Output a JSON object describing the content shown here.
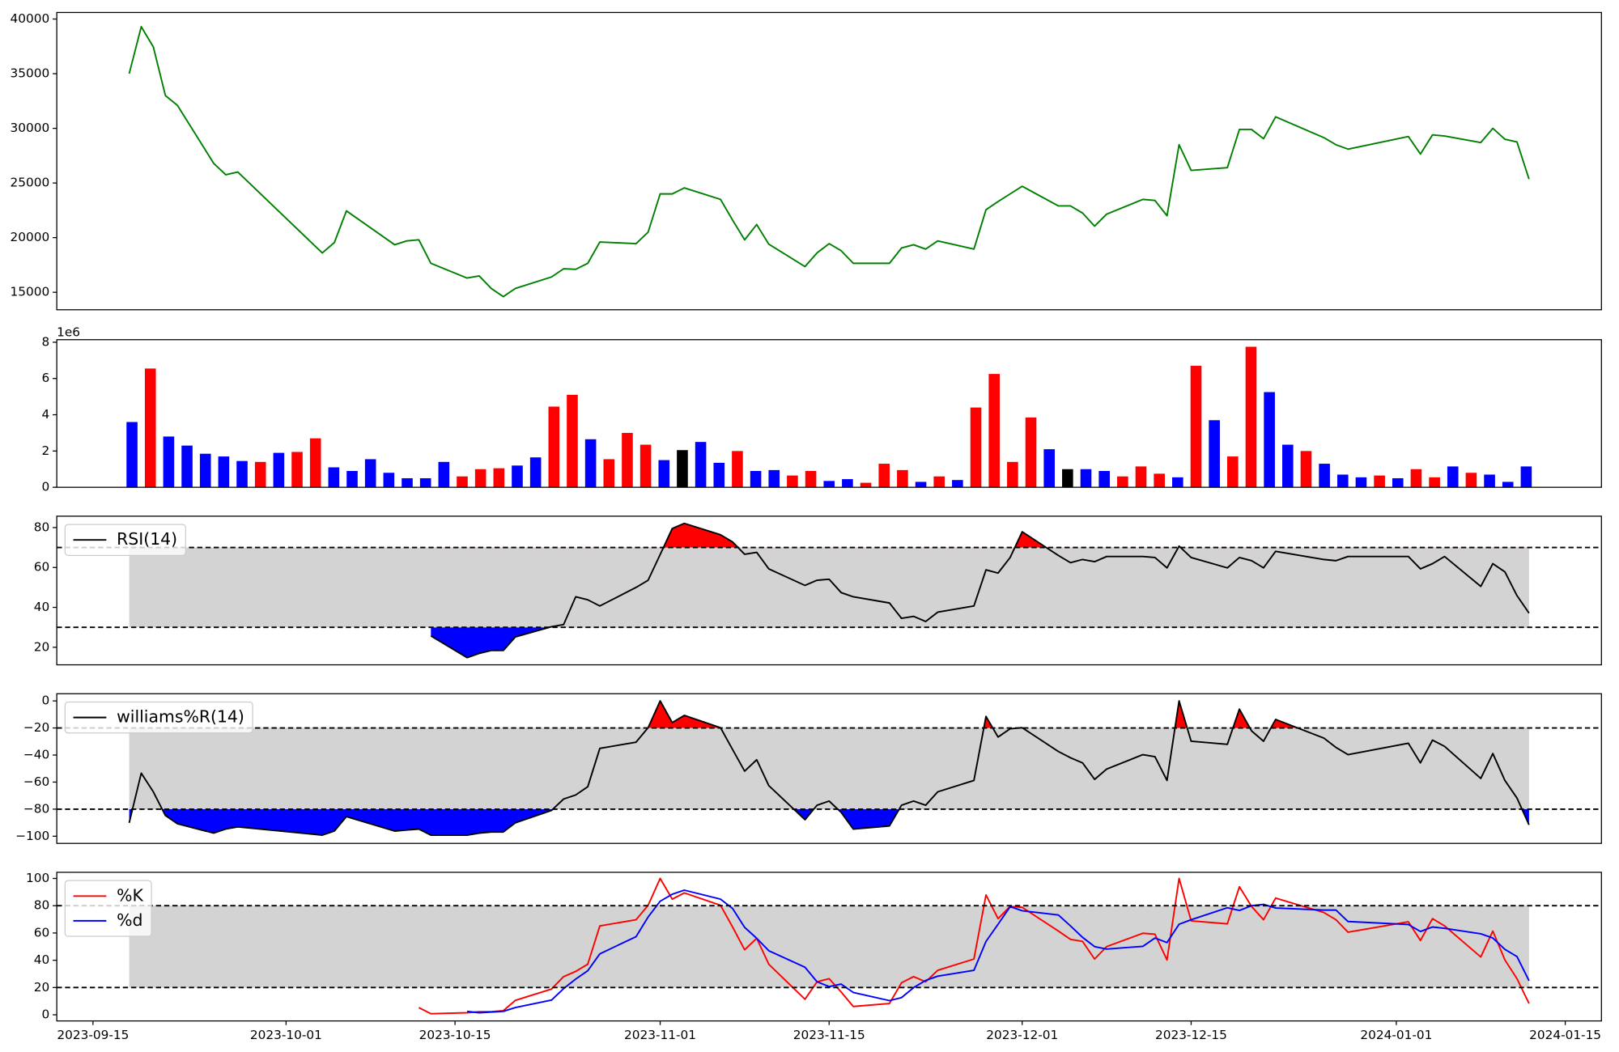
{
  "chart_data": [
    {
      "type": "line",
      "x": [
        "2023-09-18",
        "2023-09-19",
        "2023-09-20",
        "2023-09-21",
        "2023-09-22",
        "2023-09-25",
        "2023-09-26",
        "2023-09-27",
        "2023-10-04",
        "2023-10-05",
        "2023-10-06",
        "2023-10-10",
        "2023-10-11",
        "2023-10-12",
        "2023-10-13",
        "2023-10-16",
        "2023-10-17",
        "2023-10-18",
        "2023-10-19",
        "2023-10-20",
        "2023-10-23",
        "2023-10-24",
        "2023-10-25",
        "2023-10-26",
        "2023-10-27",
        "2023-10-30",
        "2023-10-31",
        "2023-11-01",
        "2023-11-02",
        "2023-11-03",
        "2023-11-06",
        "2023-11-07",
        "2023-11-08",
        "2023-11-09",
        "2023-11-10",
        "2023-11-13",
        "2023-11-14",
        "2023-11-15",
        "2023-11-16",
        "2023-11-17",
        "2023-11-20",
        "2023-11-21",
        "2023-11-22",
        "2023-11-23",
        "2023-11-24",
        "2023-11-27",
        "2023-11-28",
        "2023-11-29",
        "2023-11-30",
        "2023-12-01",
        "2023-12-04",
        "2023-12-05",
        "2023-12-06",
        "2023-12-07",
        "2023-12-08",
        "2023-12-11",
        "2023-12-12",
        "2023-12-13",
        "2023-12-14",
        "2023-12-15",
        "2023-12-18",
        "2023-12-19",
        "2023-12-20",
        "2023-12-21",
        "2023-12-22",
        "2023-12-26",
        "2023-12-27",
        "2023-12-28",
        "2024-01-02",
        "2024-01-03",
        "2024-01-04",
        "2024-01-05",
        "2024-01-08",
        "2024-01-09",
        "2024-01-10",
        "2024-01-11",
        "2024-01-12"
      ],
      "series": [
        {
          "color": "green",
          "values": [
            35000,
            39300,
            37450,
            33000,
            32100,
            26800,
            25750,
            26000,
            18600,
            19550,
            22450,
            19350,
            19700,
            19800,
            17650,
            16300,
            16500,
            15350,
            14600,
            15350,
            16400,
            17150,
            17100,
            17650,
            19600,
            19450,
            20500,
            24000,
            24000,
            24550,
            23500,
            21600,
            19800,
            21200,
            19400,
            17350,
            18600,
            19450,
            18800,
            17650,
            17650,
            19050,
            19350,
            18950,
            19700,
            18950,
            22550,
            23300,
            24000,
            24700,
            22900,
            22900,
            22250,
            21050,
            22150,
            23500,
            23400,
            22000,
            28500,
            26150,
            26400,
            29900,
            29900,
            29050,
            31050,
            29150,
            28500,
            28100,
            29250,
            27650,
            29400,
            29300,
            28700,
            30000,
            29000,
            28750,
            25350
          ]
        }
      ],
      "xlim": [
        "2023-09-12",
        "2024-01-18"
      ],
      "ylim": [
        13400,
        40600
      ],
      "yticks": [
        15000,
        20000,
        25000,
        30000,
        35000,
        40000
      ]
    },
    {
      "type": "bar",
      "values": [
        3600000,
        6550000,
        2800000,
        2300000,
        1850000,
        1700000,
        1450000,
        1400000,
        1900000,
        1950000,
        2700000,
        1100000,
        900000,
        1550000,
        800000,
        500000,
        500000,
        1400000,
        600000,
        1000000,
        1050000,
        1200000,
        1650000,
        4450000,
        5100000,
        2650000,
        1550000,
        3000000,
        2350000,
        1500000,
        2050000,
        2500000,
        1350000,
        2000000,
        900000,
        950000,
        650000,
        900000,
        350000,
        450000,
        250000,
        1300000,
        950000,
        300000,
        600000,
        400000,
        4400000,
        6250000,
        1400000,
        3850000,
        2100000,
        1000000,
        1000000,
        900000,
        600000,
        1150000,
        750000,
        550000,
        6700000,
        3700000,
        1700000,
        7750000,
        5250000,
        2350000,
        2000000,
        1300000,
        700000,
        550000,
        650000,
        500000,
        1000000,
        550000,
        1150000,
        800000,
        700000,
        300000,
        1150000
      ],
      "colors": [
        "blue",
        "red",
        "blue",
        "blue",
        "blue",
        "blue",
        "blue",
        "red",
        "blue",
        "red",
        "red",
        "blue",
        "blue",
        "blue",
        "blue",
        "blue",
        "blue",
        "blue",
        "red",
        "red",
        "red",
        "blue",
        "blue",
        "red",
        "red",
        "blue",
        "red",
        "red",
        "red",
        "blue",
        "black",
        "blue",
        "blue",
        "red",
        "blue",
        "blue",
        "red",
        "red",
        "blue",
        "blue",
        "red",
        "red",
        "red",
        "blue",
        "red",
        "blue",
        "red",
        "red",
        "red",
        "red",
        "blue",
        "black",
        "blue",
        "blue",
        "red",
        "red",
        "red",
        "blue",
        "red",
        "blue",
        "red",
        "red",
        "blue",
        "blue",
        "red",
        "blue",
        "blue",
        "blue",
        "red",
        "blue",
        "red",
        "red",
        "blue",
        "red",
        "blue",
        "blue",
        "blue"
      ],
      "xlim": [
        -4.1,
        80.1
      ],
      "ylim": [
        0,
        8140000
      ],
      "yticks": [
        0,
        {
          "value": 2000000,
          "label": "2"
        },
        {
          "value": 4000000,
          "label": "4"
        },
        {
          "value": 6000000,
          "label": "6"
        },
        {
          "value": 8000000,
          "label": "8"
        }
      ],
      "y_offset_label": "1e6"
    },
    {
      "type": "line",
      "x": [
        "2023-09-18",
        "2023-09-19",
        "2023-09-20",
        "2023-09-21",
        "2023-09-22",
        "2023-09-25",
        "2023-09-26",
        "2023-09-27",
        "2023-10-04",
        "2023-10-05",
        "2023-10-06",
        "2023-10-10",
        "2023-10-11",
        "2023-10-12",
        "2023-10-13",
        "2023-10-16",
        "2023-10-17",
        "2023-10-18",
        "2023-10-19",
        "2023-10-20",
        "2023-10-23",
        "2023-10-24",
        "2023-10-25",
        "2023-10-26",
        "2023-10-27",
        "2023-10-30",
        "2023-10-31",
        "2023-11-01",
        "2023-11-02",
        "2023-11-03",
        "2023-11-06",
        "2023-11-07",
        "2023-11-08",
        "2023-11-09",
        "2023-11-10",
        "2023-11-13",
        "2023-11-14",
        "2023-11-15",
        "2023-11-16",
        "2023-11-17",
        "2023-11-20",
        "2023-11-21",
        "2023-11-22",
        "2023-11-23",
        "2023-11-24",
        "2023-11-27",
        "2023-11-28",
        "2023-11-29",
        "2023-11-30",
        "2023-12-01",
        "2023-12-04",
        "2023-12-05",
        "2023-12-06",
        "2023-12-07",
        "2023-12-08",
        "2023-12-11",
        "2023-12-12",
        "2023-12-13",
        "2023-12-14",
        "2023-12-15",
        "2023-12-18",
        "2023-12-19",
        "2023-12-20",
        "2023-12-21",
        "2023-12-22",
        "2023-12-26",
        "2023-12-27",
        "2023-12-28",
        "2024-01-02",
        "2024-01-03",
        "2024-01-04",
        "2024-01-05",
        "2024-01-08",
        "2024-01-09",
        "2024-01-10",
        "2024-01-11",
        "2024-01-12"
      ],
      "series": [
        {
          "name": "RSI(14)",
          "color": "black",
          "values": [
            null,
            null,
            null,
            null,
            null,
            null,
            null,
            null,
            null,
            null,
            null,
            null,
            null,
            null,
            25.7,
            14.8,
            16.9,
            18.4,
            18.4,
            25.2,
            30.3,
            31.4,
            45.3,
            43.8,
            40.7,
            50.0,
            53.6,
            66.5,
            79.5,
            82.1,
            76.4,
            72.8,
            66.6,
            67.6,
            59.3,
            51.0,
            53.6,
            54.1,
            47.4,
            45.3,
            42.2,
            34.5,
            35.5,
            32.9,
            37.6,
            40.7,
            58.8,
            57.2,
            65.0,
            77.9,
            66.0,
            62.4,
            64.0,
            62.9,
            65.5,
            65.5,
            65.0,
            59.8,
            70.7,
            65.0,
            59.8,
            65.0,
            63.4,
            59.8,
            68.1,
            64.0,
            63.4,
            65.5,
            65.5,
            59.3,
            61.9,
            65.5,
            50.5,
            61.9,
            57.8,
            45.9,
            37.1
          ]
        }
      ],
      "xlim": [
        "2023-09-12",
        "2024-01-18"
      ],
      "ylim": [
        11.2,
        85.7
      ],
      "yticks": [
        20,
        40,
        60,
        80
      ],
      "band": [
        30,
        70
      ],
      "band_color": "lightgray",
      "hlines": [
        30,
        70
      ],
      "fill_above_color": "red",
      "fill_below_color": "blue",
      "legend": "upper left"
    },
    {
      "type": "line",
      "x": [
        "2023-09-18",
        "2023-09-19",
        "2023-09-20",
        "2023-09-21",
        "2023-09-22",
        "2023-09-25",
        "2023-09-26",
        "2023-09-27",
        "2023-10-04",
        "2023-10-05",
        "2023-10-06",
        "2023-10-10",
        "2023-10-11",
        "2023-10-12",
        "2023-10-13",
        "2023-10-16",
        "2023-10-17",
        "2023-10-18",
        "2023-10-19",
        "2023-10-20",
        "2023-10-23",
        "2023-10-24",
        "2023-10-25",
        "2023-10-26",
        "2023-10-27",
        "2023-10-30",
        "2023-10-31",
        "2023-11-01",
        "2023-11-02",
        "2023-11-03",
        "2023-11-06",
        "2023-11-07",
        "2023-11-08",
        "2023-11-09",
        "2023-11-10",
        "2023-11-13",
        "2023-11-14",
        "2023-11-15",
        "2023-11-16",
        "2023-11-17",
        "2023-11-20",
        "2023-11-21",
        "2023-11-22",
        "2023-11-23",
        "2023-11-24",
        "2023-11-27",
        "2023-11-28",
        "2023-11-29",
        "2023-11-30",
        "2023-12-01",
        "2023-12-04",
        "2023-12-05",
        "2023-12-06",
        "2023-12-07",
        "2023-12-08",
        "2023-12-11",
        "2023-12-12",
        "2023-12-13",
        "2023-12-14",
        "2023-12-15",
        "2023-12-18",
        "2023-12-19",
        "2023-12-20",
        "2023-12-21",
        "2023-12-22",
        "2023-12-26",
        "2023-12-27",
        "2023-12-28",
        "2024-01-02",
        "2024-01-03",
        "2024-01-04",
        "2024-01-05",
        "2024-01-08",
        "2024-01-09",
        "2024-01-10",
        "2024-01-11",
        "2024-01-12"
      ],
      "series": [
        {
          "name": "williams%R(14)",
          "color": "black",
          "values": [
            -90.1,
            -53.4,
            -67.2,
            -84.7,
            -90.8,
            -97.7,
            -94.7,
            -93.1,
            -99.2,
            -96.2,
            -85.5,
            -96.2,
            -95.4,
            -94.7,
            -99.2,
            -99.2,
            -97.7,
            -96.9,
            -96.9,
            -90.1,
            -80.9,
            -72.5,
            -69.5,
            -63.4,
            -35.1,
            -30.5,
            -19.8,
            0,
            -16.0,
            -10.7,
            -19.8,
            -35.9,
            -51.9,
            -43.5,
            -62.6,
            -87.8,
            -77.1,
            -74.0,
            -82.4,
            -94.7,
            -92.4,
            -77.1,
            -74.0,
            -77.1,
            -67.2,
            -58.8,
            -11.5,
            -26.7,
            -20.6,
            -19.8,
            -37.4,
            -42.0,
            -45.8,
            -58.0,
            -50.4,
            -39.7,
            -41.2,
            -58.8,
            0,
            -29.8,
            -32.1,
            -6.1,
            -22.1,
            -29.8,
            -13.7,
            -27.5,
            -34.4,
            -39.7,
            -31.3,
            -45.8,
            -29.0,
            -33.6,
            -57.3,
            -38.9,
            -58.8,
            -71.8,
            -91.6
          ]
        }
      ],
      "xlim": [
        "2023-09-12",
        "2024-01-18"
      ],
      "ylim": [
        -105.3,
        5.3
      ],
      "yticks": [
        {
          "value": -100,
          "label": "−100"
        },
        {
          "value": -80,
          "label": "−80"
        },
        {
          "value": -60,
          "label": "−60"
        },
        {
          "value": -40,
          "label": "−40"
        },
        {
          "value": -20,
          "label": "−20"
        },
        0
      ],
      "band": [
        -80,
        -20
      ],
      "band_color": "lightgray",
      "hlines": [
        -80,
        -20
      ],
      "fill_above_color": "red",
      "fill_below_color": "blue",
      "legend": "upper left"
    },
    {
      "type": "line",
      "x": [
        "2023-09-18",
        "2023-09-19",
        "2023-09-20",
        "2023-09-21",
        "2023-09-22",
        "2023-09-25",
        "2023-09-26",
        "2023-09-27",
        "2023-10-04",
        "2023-10-05",
        "2023-10-06",
        "2023-10-10",
        "2023-10-11",
        "2023-10-12",
        "2023-10-13",
        "2023-10-16",
        "2023-10-17",
        "2023-10-18",
        "2023-10-19",
        "2023-10-20",
        "2023-10-23",
        "2023-10-24",
        "2023-10-25",
        "2023-10-26",
        "2023-10-27",
        "2023-10-30",
        "2023-10-31",
        "2023-11-01",
        "2023-11-02",
        "2023-11-03",
        "2023-11-06",
        "2023-11-07",
        "2023-11-08",
        "2023-11-09",
        "2023-11-10",
        "2023-11-13",
        "2023-11-14",
        "2023-11-15",
        "2023-11-16",
        "2023-11-17",
        "2023-11-20",
        "2023-11-21",
        "2023-11-22",
        "2023-11-23",
        "2023-11-24",
        "2023-11-27",
        "2023-11-28",
        "2023-11-29",
        "2023-11-30",
        "2023-12-01",
        "2023-12-04",
        "2023-12-05",
        "2023-12-06",
        "2023-12-07",
        "2023-12-08",
        "2023-12-11",
        "2023-12-12",
        "2023-12-13",
        "2023-12-14",
        "2023-12-15",
        "2023-12-18",
        "2023-12-19",
        "2023-12-20",
        "2023-12-21",
        "2023-12-22",
        "2023-12-26",
        "2023-12-27",
        "2023-12-28",
        "2024-01-02",
        "2024-01-03",
        "2024-01-04",
        "2024-01-05",
        "2024-01-08",
        "2024-01-09",
        "2024-01-10",
        "2024-01-11",
        "2024-01-12"
      ],
      "series": [
        {
          "name": "%K",
          "color": "red",
          "values": [
            null,
            null,
            null,
            null,
            null,
            null,
            null,
            null,
            null,
            null,
            null,
            null,
            null,
            5.3,
            0.8,
            1.5,
            2.3,
            2.3,
            3.0,
            10.6,
            18.9,
            28.0,
            31.8,
            37.1,
            65.2,
            69.7,
            80.3,
            100,
            84.8,
            89.4,
            80.3,
            64.4,
            47.7,
            56.1,
            37.1,
            11.4,
            24.2,
            26.5,
            16.7,
            6.1,
            8.3,
            23.5,
            28.0,
            24.2,
            32.6,
            40.9,
            87.9,
            70.5,
            79.5,
            78.8,
            61.4,
            55.3,
            53.8,
            40.9,
            50.0,
            59.8,
            59.1,
            40.2,
            100,
            68.9,
            66.7,
            93.9,
            79.5,
            69.7,
            85.6,
            75.0,
            69.7,
            60.6,
            68.2,
            54.5,
            70.5,
            65.2,
            42.4,
            61.4,
            40.2,
            26.5,
            8.3
          ]
        },
        {
          "name": "%d",
          "color": "blue",
          "values": [
            null,
            null,
            null,
            null,
            null,
            null,
            null,
            null,
            null,
            null,
            null,
            null,
            null,
            null,
            null,
            2.5,
            1.5,
            2.0,
            2.5,
            5.3,
            10.8,
            19.2,
            26.2,
            32.3,
            44.7,
            57.3,
            71.7,
            83.3,
            88.4,
            91.4,
            84.8,
            78.0,
            64.1,
            56.1,
            47.0,
            34.9,
            24.2,
            20.7,
            22.5,
            16.4,
            10.4,
            12.6,
            19.9,
            25.2,
            28.3,
            32.6,
            53.8,
            66.4,
            79.3,
            76.3,
            73.2,
            65.2,
            56.8,
            50.0,
            48.2,
            50.2,
            56.3,
            53.0,
            66.4,
            69.7,
            78.5,
            76.5,
            80.0,
            81.0,
            78.3,
            76.8,
            76.8,
            68.4,
            66.2,
            61.1,
            64.4,
            63.4,
            59.4,
            56.3,
            48.0,
            42.7,
            25.0
          ]
        }
      ],
      "xlim": [
        "2023-09-12",
        "2024-01-18"
      ],
      "ylim": [
        -4.5,
        104.5
      ],
      "yticks": [
        0,
        20,
        40,
        60,
        80,
        100
      ],
      "xticks": [
        "2023-09-15",
        "2023-10-01",
        "2023-10-15",
        "2023-11-01",
        "2023-11-15",
        "2023-12-01",
        "2023-12-15",
        "2024-01-01",
        "2024-01-15"
      ],
      "band": [
        20,
        80
      ],
      "band_color": "lightgray",
      "hlines": [
        20,
        80
      ],
      "legend": "upper left"
    }
  ]
}
